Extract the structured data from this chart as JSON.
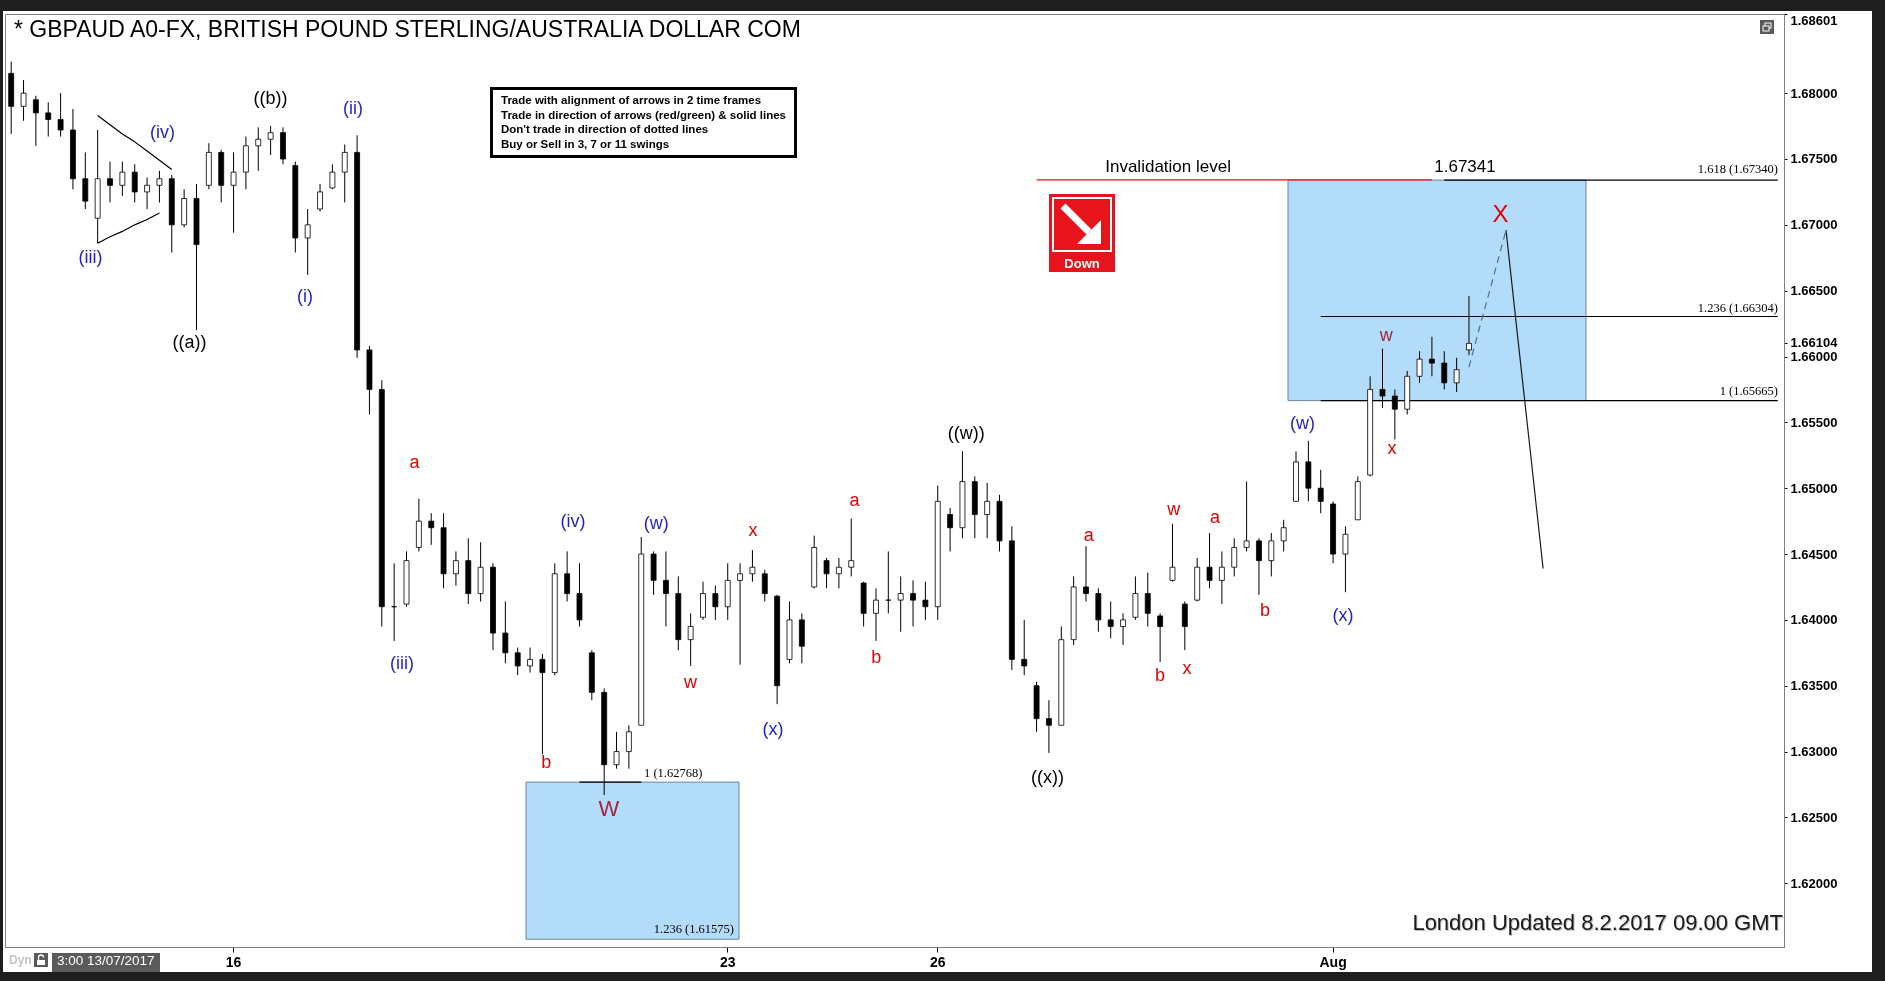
{
  "chart_data": {
    "type": "candlestick",
    "title": "* GBPAUD A0-FX, BRITISH POUND STERLING/AUSTRALIA DOLLAR COM",
    "color": "#000000",
    "categories": [
      null,
      null,
      null,
      null,
      null,
      null,
      null,
      null,
      null,
      null,
      null,
      null,
      null,
      null,
      null,
      null,
      null,
      null,
      "16",
      null,
      null,
      null,
      null,
      null,
      null,
      null,
      null,
      null,
      null,
      null,
      null,
      null,
      null,
      null,
      null,
      null,
      null,
      null,
      null,
      null,
      null,
      null,
      null,
      null,
      null,
      null,
      null,
      null,
      null,
      null,
      null,
      null,
      null,
      null,
      null,
      null,
      null,
      null,
      "23",
      null,
      null,
      null,
      null,
      null,
      null,
      null,
      null,
      null,
      null,
      null,
      null,
      null,
      null,
      null,
      null,
      "26",
      null,
      null,
      null,
      null,
      null,
      null,
      null,
      null,
      null,
      null,
      null,
      null,
      null,
      null,
      null,
      null,
      null,
      null,
      null,
      null,
      null,
      null,
      null,
      null,
      null,
      null,
      null,
      null,
      null,
      null,
      null,
      "Aug",
      null,
      null,
      null,
      null,
      null,
      null,
      null,
      null,
      null,
      null,
      null,
      null,
      null,
      null,
      null,
      null,
      null,
      null,
      null,
      null,
      null,
      null,
      null,
      null,
      null,
      null,
      null,
      null,
      null,
      null,
      null,
      null,
      null,
      null,
      null,
      null
    ],
    "ohlc": [
      [
        1.6815,
        1.6824,
        1.6769,
        1.679
      ],
      [
        1.679,
        1.681,
        1.6779,
        1.68
      ],
      [
        1.6795,
        1.6798,
        1.676,
        1.6785
      ],
      [
        1.6785,
        1.6793,
        1.6767,
        1.678
      ],
      [
        1.678,
        1.68,
        1.6767,
        1.6772
      ],
      [
        1.6772,
        1.6788,
        1.6727,
        1.6735
      ],
      [
        1.6735,
        1.6755,
        1.6712,
        1.6718
      ],
      [
        1.6705,
        1.6772,
        1.6686,
        1.6735
      ],
      [
        1.6735,
        1.6748,
        1.6717,
        1.673
      ],
      [
        1.673,
        1.6748,
        1.6722,
        1.674
      ],
      [
        1.674,
        1.6746,
        1.6717,
        1.6725
      ],
      [
        1.6725,
        1.6736,
        1.6712,
        1.673
      ],
      [
        1.673,
        1.6741,
        1.6717,
        1.6735
      ],
      [
        1.6735,
        1.6738,
        1.6679,
        1.67
      ],
      [
        1.67,
        1.6727,
        1.6698,
        1.672
      ],
      [
        1.672,
        1.6731,
        1.662,
        1.6685
      ],
      [
        1.673,
        1.6762,
        1.6727,
        1.6755
      ],
      [
        1.6755,
        1.6757,
        1.6717,
        1.673
      ],
      [
        1.673,
        1.6755,
        1.6694,
        1.674
      ],
      [
        1.674,
        1.6767,
        1.6727,
        1.676
      ],
      [
        1.676,
        1.6774,
        1.6741,
        1.6765
      ],
      [
        1.6765,
        1.6775,
        1.6753,
        1.677
      ],
      [
        1.677,
        1.6774,
        1.6746,
        1.675
      ],
      [
        1.6745,
        1.6748,
        1.6679,
        1.669
      ],
      [
        1.669,
        1.6712,
        1.6662,
        1.67
      ],
      [
        1.6712,
        1.6731,
        1.671,
        1.6725
      ],
      [
        1.6728,
        1.6746,
        1.6727,
        1.674
      ],
      [
        1.674,
        1.6761,
        1.6717,
        1.6755
      ],
      [
        1.6755,
        1.6768,
        1.6599,
        1.6605
      ],
      [
        1.6605,
        1.6608,
        1.6556,
        1.6575
      ],
      [
        1.6575,
        1.6582,
        1.6395,
        1.641
      ],
      [
        1.641,
        1.6443,
        1.6384,
        1.641
      ],
      [
        1.6412,
        1.6452,
        1.641,
        1.6445
      ],
      [
        1.6455,
        1.6492,
        1.6452,
        1.6475
      ],
      [
        1.6475,
        1.6481,
        1.6457,
        1.647
      ],
      [
        1.647,
        1.6481,
        1.6424,
        1.6435
      ],
      [
        1.6435,
        1.6452,
        1.6426,
        1.6445
      ],
      [
        1.6445,
        1.6462,
        1.6412,
        1.642
      ],
      [
        1.642,
        1.6459,
        1.6414,
        1.644
      ],
      [
        1.644,
        1.6443,
        1.6377,
        1.639
      ],
      [
        1.639,
        1.6414,
        1.6367,
        1.6375
      ],
      [
        1.6375,
        1.6379,
        1.6358,
        1.6365
      ],
      [
        1.6365,
        1.6379,
        1.636,
        1.637
      ],
      [
        1.637,
        1.6374,
        1.6298,
        1.636
      ],
      [
        1.636,
        1.6443,
        1.6358,
        1.6435
      ],
      [
        1.6435,
        1.6452,
        1.6414,
        1.642
      ],
      [
        1.642,
        1.6443,
        1.6395,
        1.64
      ],
      [
        1.6375,
        1.6377,
        1.6339,
        1.6345
      ],
      [
        1.6345,
        1.6348,
        1.6267,
        1.629
      ],
      [
        1.629,
        1.6315,
        1.6287,
        1.63
      ],
      [
        1.63,
        1.632,
        1.6287,
        1.6315
      ],
      [
        1.632,
        1.6463,
        1.632,
        1.645
      ],
      [
        1.645,
        1.6452,
        1.6419,
        1.643
      ],
      [
        1.643,
        1.6452,
        1.6395,
        1.642
      ],
      [
        1.642,
        1.6433,
        1.6377,
        1.6385
      ],
      [
        1.6385,
        1.6405,
        1.6365,
        1.6395
      ],
      [
        1.6402,
        1.6429,
        1.64,
        1.642
      ],
      [
        1.642,
        1.6426,
        1.64,
        1.641
      ],
      [
        1.641,
        1.6443,
        1.64,
        1.643
      ],
      [
        1.643,
        1.6443,
        1.6366,
        1.6435
      ],
      [
        1.6435,
        1.6453,
        1.6429,
        1.644
      ],
      [
        1.6435,
        1.6438,
        1.6414,
        1.642
      ],
      [
        1.6418,
        1.6419,
        1.6336,
        1.635
      ],
      [
        1.637,
        1.6414,
        1.6367,
        1.64
      ],
      [
        1.64,
        1.6405,
        1.6367,
        1.638
      ],
      [
        1.6425,
        1.6464,
        1.6424,
        1.6455
      ],
      [
        1.6445,
        1.6447,
        1.6424,
        1.6435
      ],
      [
        1.6435,
        1.6447,
        1.6424,
        1.644
      ],
      [
        1.644,
        1.6477,
        1.6433,
        1.6445
      ],
      [
        1.6428,
        1.6429,
        1.6395,
        1.6405
      ],
      [
        1.6405,
        1.6424,
        1.6384,
        1.6415
      ],
      [
        1.6415,
        1.6452,
        1.6405,
        1.6415
      ],
      [
        1.6415,
        1.6433,
        1.6391,
        1.642
      ],
      [
        1.642,
        1.643,
        1.6395,
        1.6415
      ],
      [
        1.6415,
        1.6429,
        1.64,
        1.641
      ],
      [
        1.641,
        1.6502,
        1.64,
        1.649
      ],
      [
        1.648,
        1.6485,
        1.6452,
        1.647
      ],
      [
        1.647,
        1.6528,
        1.6462,
        1.6505
      ],
      [
        1.6505,
        1.6509,
        1.6462,
        1.648
      ],
      [
        1.648,
        1.6504,
        1.6462,
        1.649
      ],
      [
        1.649,
        1.6495,
        1.6452,
        1.646
      ],
      [
        1.646,
        1.6471,
        1.6362,
        1.637
      ],
      [
        1.637,
        1.64,
        1.6358,
        1.6365
      ],
      [
        1.635,
        1.6353,
        1.6315,
        1.6325
      ],
      [
        1.6325,
        1.6339,
        1.6299,
        1.632
      ],
      [
        1.632,
        1.6395,
        1.632,
        1.6385
      ],
      [
        1.6385,
        1.6433,
        1.6381,
        1.6425
      ],
      [
        1.6425,
        1.6456,
        1.6414,
        1.642
      ],
      [
        1.642,
        1.6424,
        1.6391,
        1.64
      ],
      [
        1.64,
        1.6414,
        1.6386,
        1.6395
      ],
      [
        1.6395,
        1.6405,
        1.6381,
        1.64
      ],
      [
        1.6402,
        1.6433,
        1.64,
        1.642
      ],
      [
        1.642,
        1.6436,
        1.6395,
        1.6405
      ],
      [
        1.6403,
        1.6405,
        1.6368,
        1.6395
      ],
      [
        1.643,
        1.6473,
        1.6429,
        1.644
      ],
      [
        1.6412,
        1.6414,
        1.6377,
        1.6395
      ],
      [
        1.6415,
        1.6447,
        1.6414,
        1.644
      ],
      [
        1.644,
        1.6466,
        1.6424,
        1.643
      ],
      [
        1.643,
        1.6452,
        1.6412,
        1.644
      ],
      [
        1.644,
        1.6462,
        1.6433,
        1.6455
      ],
      [
        1.6455,
        1.6505,
        1.6452,
        1.646
      ],
      [
        1.646,
        1.6462,
        1.6419,
        1.6445
      ],
      [
        1.6445,
        1.6466,
        1.6433,
        1.646
      ],
      [
        1.646,
        1.6476,
        1.6452,
        1.647
      ],
      [
        1.649,
        1.6528,
        1.649,
        1.652
      ],
      [
        1.652,
        1.6536,
        1.649,
        1.65
      ],
      [
        1.65,
        1.6514,
        1.6481,
        1.649
      ],
      [
        1.6488,
        1.649,
        1.6443,
        1.645
      ],
      [
        1.645,
        1.6471,
        1.6421,
        1.6465
      ],
      [
        1.6476,
        1.6509,
        1.6476,
        1.6505
      ],
      [
        1.651,
        1.6585,
        1.6509,
        1.6575
      ],
      [
        1.6575,
        1.6606,
        1.6561,
        1.657
      ],
      [
        1.657,
        1.6575,
        1.6537,
        1.656
      ],
      [
        1.656,
        1.6589,
        1.6556,
        1.6585
      ],
      [
        1.6585,
        1.6604,
        1.658,
        1.6598
      ],
      [
        1.6598,
        1.6615,
        1.6585,
        1.6595
      ],
      [
        1.6595,
        1.6604,
        1.6575,
        1.658
      ],
      [
        1.658,
        1.6599,
        1.6573,
        1.659
      ],
      [
        1.6605,
        1.6646,
        1.6601,
        1.661
      ],
      null,
      null,
      null,
      null,
      null,
      null,
      null,
      null,
      null,
      null,
      null,
      null,
      null,
      null,
      null,
      null,
      null,
      null,
      null,
      null,
      null,
      null,
      null,
      null,
      null
    ],
    "bands": [
      {
        "axis": "y",
        "from": 1.61575,
        "to": 1.62768,
        "color": "#b3dcfa"
      },
      {
        "axis": "y",
        "from": 1.65665,
        "to": 1.6734,
        "color": "#b3dcfa"
      }
    ],
    "series": [
      {
        "type": "line",
        "color": "#000000",
        "values": [
          null,
          null,
          null,
          null,
          null,
          null,
          null,
          null,
          null,
          null,
          null,
          null,
          null,
          null,
          null,
          null,
          null,
          null,
          null,
          null,
          null,
          null,
          null,
          null,
          null,
          null,
          null,
          null,
          null,
          null,
          null,
          null,
          null,
          null,
          null,
          null,
          null,
          null,
          null,
          null,
          null,
          null,
          null,
          null,
          null,
          null,
          null,
          null,
          null,
          null,
          null,
          null,
          null,
          null,
          null,
          null,
          null,
          null,
          null,
          null,
          null,
          null,
          null,
          null,
          null,
          null,
          null,
          null,
          null,
          null,
          null,
          null,
          null,
          null,
          null,
          null,
          null,
          null,
          null,
          null,
          null,
          null,
          null,
          null,
          null,
          null,
          null,
          null,
          null,
          null,
          null,
          null,
          null,
          null,
          null,
          null,
          null,
          null,
          null,
          null,
          null,
          null,
          null,
          null,
          null,
          null,
          null,
          null,
          null,
          null,
          null,
          null,
          null,
          null,
          null,
          null,
          1.6734,
          1.6734,
          1.6734,
          1.6734,
          1.6734,
          1.6734,
          1.6734,
          1.6734,
          1.6734,
          1.6734,
          1.6734,
          1.6734,
          1.6734,
          1.6734,
          1.6734,
          1.6734,
          1.6734,
          1.6734,
          1.6734,
          1.6734,
          1.6734,
          1.6734,
          1.6734,
          1.6734,
          1.6734,
          1.6734,
          1.6734,
          1.6734
        ]
      },
      {
        "type": "line",
        "color": "#000000",
        "values": [
          null,
          null,
          null,
          null,
          null,
          null,
          null,
          null,
          null,
          null,
          null,
          null,
          null,
          null,
          null,
          null,
          null,
          null,
          null,
          null,
          null,
          null,
          null,
          null,
          null,
          null,
          null,
          null,
          null,
          null,
          null,
          null,
          null,
          null,
          null,
          null,
          null,
          null,
          null,
          null,
          null,
          null,
          null,
          null,
          null,
          null,
          null,
          null,
          null,
          null,
          null,
          null,
          null,
          null,
          null,
          null,
          null,
          null,
          null,
          null,
          null,
          null,
          null,
          null,
          null,
          null,
          null,
          null,
          null,
          null,
          null,
          null,
          null,
          null,
          null,
          null,
          null,
          null,
          null,
          null,
          null,
          null,
          null,
          null,
          null,
          null,
          null,
          null,
          null,
          null,
          null,
          null,
          null,
          null,
          null,
          null,
          null,
          null,
          null,
          null,
          null,
          null,
          null,
          null,
          null,
          null,
          1.66304,
          1.66304,
          1.66304,
          1.66304,
          1.66304,
          1.66304,
          1.66304,
          1.66304,
          1.66304,
          1.66304,
          1.66304,
          1.66304,
          1.66304,
          1.66304,
          1.66304,
          1.66304,
          1.66304,
          1.66304,
          1.66304,
          1.66304,
          1.66304,
          1.66304,
          1.66304,
          1.66304,
          1.66304,
          1.66304,
          1.66304,
          1.66304,
          1.66304,
          1.66304,
          1.66304,
          1.66304,
          1.66304,
          1.66304,
          1.66304,
          1.66304,
          1.66304,
          1.66304
        ]
      },
      {
        "type": "line",
        "color": "#000000",
        "values": [
          null,
          null,
          null,
          null,
          null,
          null,
          null,
          null,
          null,
          null,
          null,
          null,
          null,
          null,
          null,
          null,
          null,
          null,
          null,
          null,
          null,
          null,
          null,
          null,
          null,
          null,
          null,
          null,
          null,
          null,
          null,
          null,
          null,
          null,
          null,
          null,
          null,
          null,
          null,
          null,
          null,
          null,
          null,
          null,
          null,
          null,
          null,
          null,
          null,
          null,
          null,
          null,
          null,
          null,
          null,
          null,
          null,
          null,
          null,
          null,
          null,
          null,
          null,
          null,
          null,
          null,
          null,
          null,
          null,
          null,
          null,
          null,
          null,
          null,
          null,
          null,
          null,
          null,
          null,
          null,
          null,
          null,
          null,
          null,
          null,
          null,
          null,
          null,
          null,
          null,
          null,
          null,
          null,
          null,
          null,
          null,
          null,
          null,
          null,
          null,
          null,
          null,
          null,
          null,
          null,
          null,
          1.65665,
          1.65665,
          1.65665,
          1.65665,
          1.65665,
          1.65665,
          1.65665,
          1.65665,
          1.65665,
          1.65665,
          1.65665,
          1.65665,
          1.65665,
          1.65665,
          1.65665,
          1.65665,
          1.65665,
          1.65665,
          1.65665,
          1.65665,
          1.65665,
          1.65665,
          1.65665,
          1.65665,
          1.65665,
          1.65665,
          1.65665,
          1.65665,
          1.65665,
          1.65665,
          1.65665,
          1.65665,
          1.65665,
          1.65665,
          1.65665,
          1.65665,
          1.65665,
          1.65665
        ]
      },
      {
        "type": "line",
        "color": "#e8141c",
        "values": [
          null,
          null,
          null,
          null,
          null,
          null,
          null,
          null,
          null,
          null,
          null,
          null,
          null,
          null,
          null,
          null,
          null,
          null,
          null,
          null,
          null,
          null,
          null,
          null,
          null,
          null,
          null,
          null,
          null,
          null,
          null,
          null,
          null,
          null,
          null,
          null,
          null,
          null,
          null,
          null,
          null,
          null,
          null,
          null,
          null,
          null,
          null,
          null,
          null,
          null,
          null,
          null,
          null,
          null,
          null,
          null,
          null,
          null,
          null,
          null,
          null,
          null,
          null,
          null,
          null,
          null,
          null,
          null,
          null,
          null,
          null,
          null,
          null,
          null,
          null,
          null,
          null,
          null,
          null,
          null,
          null,
          null,
          null,
          1.67341,
          1.67341,
          1.67341,
          1.67341,
          1.67341,
          1.67341,
          1.67341,
          1.67341,
          1.67341,
          1.67341,
          1.67341,
          1.67341,
          1.67341,
          1.67341,
          1.67341,
          1.67341,
          1.67341,
          1.67341,
          1.67341,
          1.67341,
          1.67341,
          1.67341,
          1.67341,
          1.67341,
          1.67341,
          1.67341,
          1.67341,
          1.67341,
          1.67341,
          1.67341,
          1.67341,
          1.67341,
          1.67341,
          null,
          null,
          null,
          null,
          null,
          null,
          null,
          null,
          null,
          null,
          null,
          null,
          null,
          null,
          null,
          null,
          null,
          null,
          null,
          null,
          null,
          null,
          null,
          null,
          null,
          null,
          null,
          null
        ]
      },
      {
        "type": "line",
        "color": "#000000",
        "values": [
          null,
          null,
          null,
          null,
          null,
          null,
          null,
          null,
          null,
          null,
          null,
          null,
          null,
          null,
          null,
          null,
          null,
          null,
          null,
          null,
          null,
          null,
          null,
          null,
          null,
          null,
          null,
          null,
          null,
          null,
          null,
          null,
          null,
          null,
          null,
          null,
          null,
          null,
          null,
          null,
          null,
          null,
          null,
          null,
          null,
          null,
          1.62768,
          1.62768,
          1.62768,
          1.62768,
          1.62768,
          1.62768,
          null,
          null,
          null,
          null,
          null,
          null,
          null,
          null,
          null,
          null,
          null,
          null,
          null,
          null,
          null,
          null,
          null,
          null,
          null,
          null,
          null,
          null,
          null,
          null,
          null,
          null,
          null,
          null,
          null,
          null,
          null,
          null,
          null,
          null,
          null,
          null,
          null,
          null,
          null,
          null,
          null,
          null,
          null,
          null,
          null,
          null,
          null,
          null,
          null,
          null,
          null,
          null,
          null,
          null,
          null,
          null,
          null,
          null,
          null,
          null,
          null,
          null,
          null,
          null,
          null,
          null,
          null,
          null,
          null,
          null,
          null,
          null,
          null,
          null,
          null,
          null,
          null,
          null,
          null,
          null,
          null,
          null,
          null,
          null,
          null,
          null,
          null,
          null,
          null,
          null,
          null,
          null
        ]
      },
      {
        "type": "line",
        "color": "#000000",
        "values": [
          null,
          null,
          null,
          null,
          null,
          null,
          null,
          1.6783,
          1.6776,
          1.6769,
          1.6763,
          1.6756,
          1.6749,
          1.6742,
          null,
          null,
          null,
          null,
          null,
          null,
          null,
          null,
          null,
          null,
          null,
          null,
          null,
          null,
          null,
          null,
          null,
          null,
          null,
          null,
          null,
          null,
          null,
          null,
          null,
          null,
          null,
          null,
          null,
          null,
          null,
          null,
          null,
          null,
          null,
          null,
          null,
          null,
          null,
          null,
          null,
          null,
          null,
          null,
          null,
          null,
          null,
          null,
          null,
          null,
          null,
          null,
          null,
          null,
          null,
          null,
          null,
          null,
          null,
          null,
          null,
          null,
          null,
          null,
          null,
          null,
          null,
          null,
          null,
          null,
          null,
          null,
          null,
          null,
          null,
          null,
          null,
          null,
          null,
          null,
          null,
          null,
          null,
          null,
          null,
          null,
          null,
          null,
          null,
          null,
          null,
          null,
          null,
          null,
          null,
          null,
          null,
          null,
          null,
          null,
          null,
          null,
          null,
          null,
          null,
          null,
          null,
          null,
          null,
          null,
          null,
          null,
          null,
          null,
          null,
          null,
          null,
          null,
          null,
          null,
          null,
          null,
          null,
          null,
          null,
          null,
          null,
          null,
          null,
          null
        ]
      },
      {
        "type": "line",
        "color": "#000000",
        "values": [
          null,
          null,
          null,
          null,
          null,
          null,
          null,
          1.6686,
          1.6691,
          1.6695,
          1.67,
          1.6704,
          1.6709,
          null,
          null,
          null,
          null,
          null,
          null,
          null,
          null,
          null,
          null,
          null,
          null,
          null,
          null,
          null,
          null,
          null,
          null,
          null,
          null,
          null,
          null,
          null,
          null,
          null,
          null,
          null,
          null,
          null,
          null,
          null,
          null,
          null,
          null,
          null,
          null,
          null,
          null,
          null,
          null,
          null,
          null,
          null,
          null,
          null,
          null,
          null,
          null,
          null,
          null,
          null,
          null,
          null,
          null,
          null,
          null,
          null,
          null,
          null,
          null,
          null,
          null,
          null,
          null,
          null,
          null,
          null,
          null,
          null,
          null,
          null,
          null,
          null,
          null,
          null,
          null,
          null,
          null,
          null,
          null,
          null,
          null,
          null,
          null,
          null,
          null,
          null,
          null,
          null,
          null,
          null,
          null,
          null,
          null,
          null,
          null,
          null,
          null,
          null,
          null,
          null,
          null,
          null,
          null,
          null,
          null,
          null,
          null,
          null,
          null,
          null,
          null,
          null,
          null,
          null,
          null,
          null,
          null,
          null,
          null,
          null,
          null,
          null,
          null,
          null,
          null,
          null,
          null,
          null,
          null,
          null
        ]
      },
      {
        "type": "line",
        "color": "#4c6e9e",
        "line_style": "dashed",
        "values": [
          null,
          null,
          null,
          null,
          null,
          null,
          null,
          null,
          null,
          null,
          null,
          null,
          null,
          null,
          null,
          null,
          null,
          null,
          null,
          null,
          null,
          null,
          null,
          null,
          null,
          null,
          null,
          null,
          null,
          null,
          null,
          null,
          null,
          null,
          null,
          null,
          null,
          null,
          null,
          null,
          null,
          null,
          null,
          null,
          null,
          null,
          null,
          null,
          null,
          null,
          null,
          null,
          null,
          null,
          null,
          null,
          null,
          null,
          null,
          null,
          null,
          null,
          null,
          null,
          null,
          null,
          null,
          null,
          null,
          null,
          null,
          null,
          null,
          null,
          null,
          null,
          null,
          null,
          null,
          null,
          null,
          null,
          null,
          null,
          null,
          null,
          null,
          null,
          null,
          null,
          null,
          null,
          null,
          null,
          null,
          null,
          null,
          null,
          null,
          null,
          null,
          null,
          null,
          null,
          null,
          null,
          null,
          null,
          null,
          null,
          null,
          null,
          null,
          null,
          null,
          null,
          null,
          null,
          1.6592,
          1.6627,
          1.6661,
          1.6696,
          null,
          null,
          null,
          null,
          null,
          null,
          null,
          null,
          null,
          null,
          null,
          null,
          null,
          null,
          null,
          null,
          null,
          null,
          null,
          null,
          null,
          null
        ]
      },
      {
        "type": "line",
        "color": "#1a1a1a",
        "values": [
          null,
          null,
          null,
          null,
          null,
          null,
          null,
          null,
          null,
          null,
          null,
          null,
          null,
          null,
          null,
          null,
          null,
          null,
          null,
          null,
          null,
          null,
          null,
          null,
          null,
          null,
          null,
          null,
          null,
          null,
          null,
          null,
          null,
          null,
          null,
          null,
          null,
          null,
          null,
          null,
          null,
          null,
          null,
          null,
          null,
          null,
          null,
          null,
          null,
          null,
          null,
          null,
          null,
          null,
          null,
          null,
          null,
          null,
          null,
          null,
          null,
          null,
          null,
          null,
          null,
          null,
          null,
          null,
          null,
          null,
          null,
          null,
          null,
          null,
          null,
          null,
          null,
          null,
          null,
          null,
          null,
          null,
          null,
          null,
          null,
          null,
          null,
          null,
          null,
          null,
          null,
          null,
          null,
          null,
          null,
          null,
          null,
          null,
          null,
          null,
          null,
          null,
          null,
          null,
          null,
          null,
          null,
          null,
          null,
          null,
          null,
          null,
          null,
          null,
          null,
          null,
          null,
          null,
          null,
          null,
          null,
          1.6696,
          1.661,
          1.6525,
          1.6439,
          null,
          null,
          null,
          null,
          null,
          null,
          null,
          null,
          null,
          null,
          null,
          null,
          null,
          null,
          null,
          null,
          null,
          null,
          null
        ]
      }
    ],
    "annotations": [
      "Trade with alignment of arrows in 2 time frames\nTrade in direction of arrows (red/green) & solid lines\nDon't trade in direction of dotted lines\nBuy or Sell in 3, 7 or 11 swings",
      "Down",
      "London Updated 8.2.2017 09.00 GMT",
      "3:00 13/07/2017",
      "Dyn",
      "(iii)",
      "(iv)",
      "((a))",
      "((b))",
      "(i)",
      "(ii)",
      "(iii)",
      "a",
      "b",
      "(iv)",
      "W",
      "(w)",
      "w",
      "x",
      "(x)",
      "a",
      "b",
      "((w))",
      "((x))",
      "a",
      "b",
      "w",
      "x",
      "a",
      "b",
      "(w)",
      "(x)",
      "w",
      "x",
      "X",
      "Invalidation level",
      "1.67341",
      "1.618 (1.67340)",
      "1.236 (1.66304)",
      "1 (1.65665)",
      "1 (1.62768)",
      "1.236 (1.61575)"
    ],
    "ylim": [
      1.61516,
      1.68601
    ],
    "yticks": [
      {
        "value": 1.62,
        "label": "1.62000"
      },
      {
        "value": 1.625,
        "label": "1.62500"
      },
      {
        "value": 1.63,
        "label": "1.63000"
      },
      {
        "value": 1.635,
        "label": "1.63500"
      },
      {
        "value": 1.64,
        "label": "1.64000"
      },
      {
        "value": 1.645,
        "label": "1.64500"
      },
      {
        "value": 1.65,
        "label": "1.65000"
      },
      {
        "value": 1.655,
        "label": "1.65500"
      },
      {
        "value": 1.66,
        "label": "1.66000"
      },
      {
        "value": 1.66104,
        "label": "1.66104"
      },
      {
        "value": 1.665,
        "label": "1.66500"
      },
      {
        "value": 1.67,
        "label": "1.67000"
      },
      {
        "value": 1.675,
        "label": "1.67500"
      },
      {
        "value": 1.68,
        "label": "1.68000"
      },
      {
        "value": 1.68601,
        "label": "1.68601"
      }
    ]
  }
}
